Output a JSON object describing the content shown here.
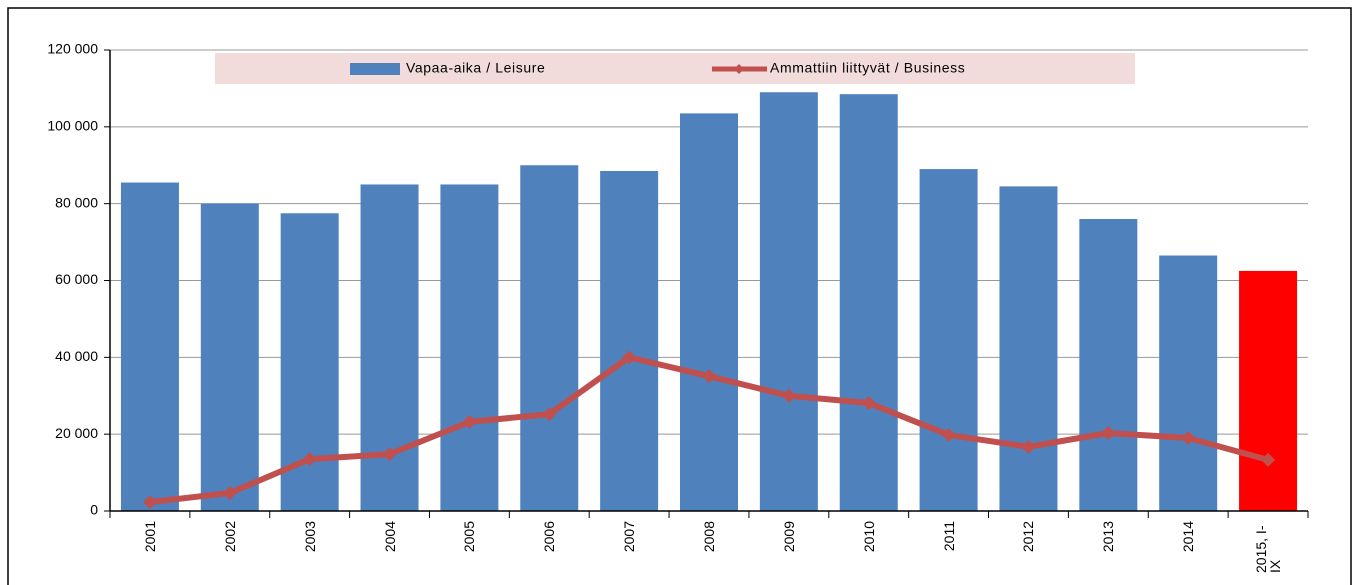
{
  "chart_data": {
    "type": "bar",
    "categories": [
      "2001",
      "2002",
      "2003",
      "2004",
      "2005",
      "2006",
      "2007",
      "2008",
      "2009",
      "2010",
      "2011",
      "2012",
      "2013",
      "2014",
      "2015, I-IX"
    ],
    "series": [
      {
        "name": "Vapaa-aika / Leisure",
        "type": "bar",
        "color": "#4f81bd",
        "colors": [
          "#4f81bd",
          "#4f81bd",
          "#4f81bd",
          "#4f81bd",
          "#4f81bd",
          "#4f81bd",
          "#4f81bd",
          "#4f81bd",
          "#4f81bd",
          "#4f81bd",
          "#4f81bd",
          "#4f81bd",
          "#4f81bd",
          "#4f81bd",
          "#ff0000"
        ],
        "values": [
          85500,
          80000,
          77500,
          85000,
          85000,
          90000,
          88500,
          103500,
          109000,
          108500,
          89000,
          84500,
          76000,
          66500,
          62500
        ]
      },
      {
        "name": "Ammattiin liittyvät / Business",
        "type": "line",
        "color": "#c0504d",
        "values": [
          2300,
          4700,
          13500,
          14800,
          23200,
          25200,
          40000,
          35100,
          30000,
          28100,
          19800,
          16700,
          20300,
          19000,
          13300
        ]
      }
    ],
    "ylim": [
      0,
      120000
    ],
    "yticks": [
      0,
      {
        "value": 20000,
        "label": "20 000"
      },
      {
        "value": 40000,
        "label": "40 000"
      },
      {
        "value": 60000,
        "label": "60 000"
      },
      {
        "value": 80000,
        "label": "80 000"
      },
      {
        "value": 100000,
        "label": "100 000"
      },
      {
        "value": 120000,
        "label": "120 000"
      }
    ],
    "grid": true,
    "legend": "top",
    "legend_background": "#f2dcdb"
  }
}
